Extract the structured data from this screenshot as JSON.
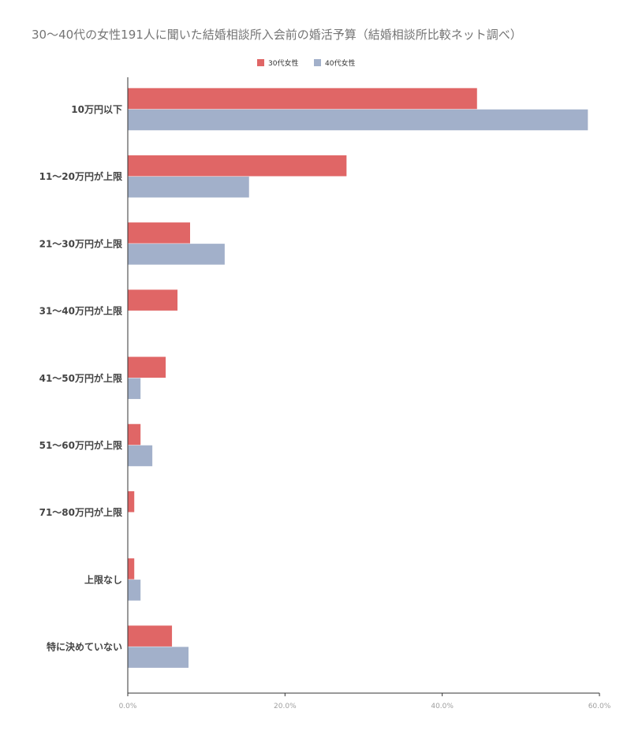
{
  "chart_data": {
    "type": "bar",
    "orientation": "horizontal",
    "title": "30〜40代の女性191人に聞いた結婚相談所入会前の婚活予算（結婚相談所比較ネット調べ）",
    "categories": [
      "10万円以下",
      "11〜20万円が上限",
      "21〜30万円が上限",
      "31〜40万円が上限",
      "41〜50万円が上限",
      "51〜60万円が上限",
      "71〜80万円が上限",
      "上限なし",
      "特に決めていない"
    ],
    "series": [
      {
        "name": "30代女性",
        "color": "#e06666",
        "values": [
          44.4,
          27.8,
          7.9,
          6.3,
          4.8,
          1.6,
          0.8,
          0.8,
          5.6
        ]
      },
      {
        "name": "40代女性",
        "color": "#a2b0ca",
        "values": [
          58.5,
          15.4,
          12.3,
          0,
          1.6,
          3.1,
          0,
          1.6,
          7.7
        ]
      }
    ],
    "xlim": [
      0,
      60
    ],
    "xticks": [
      "0.0%",
      "20.0%",
      "40.0%",
      "60.0%"
    ],
    "xtick_values": [
      0,
      20,
      40,
      60
    ],
    "legend_position": "top-center",
    "grid": false
  }
}
